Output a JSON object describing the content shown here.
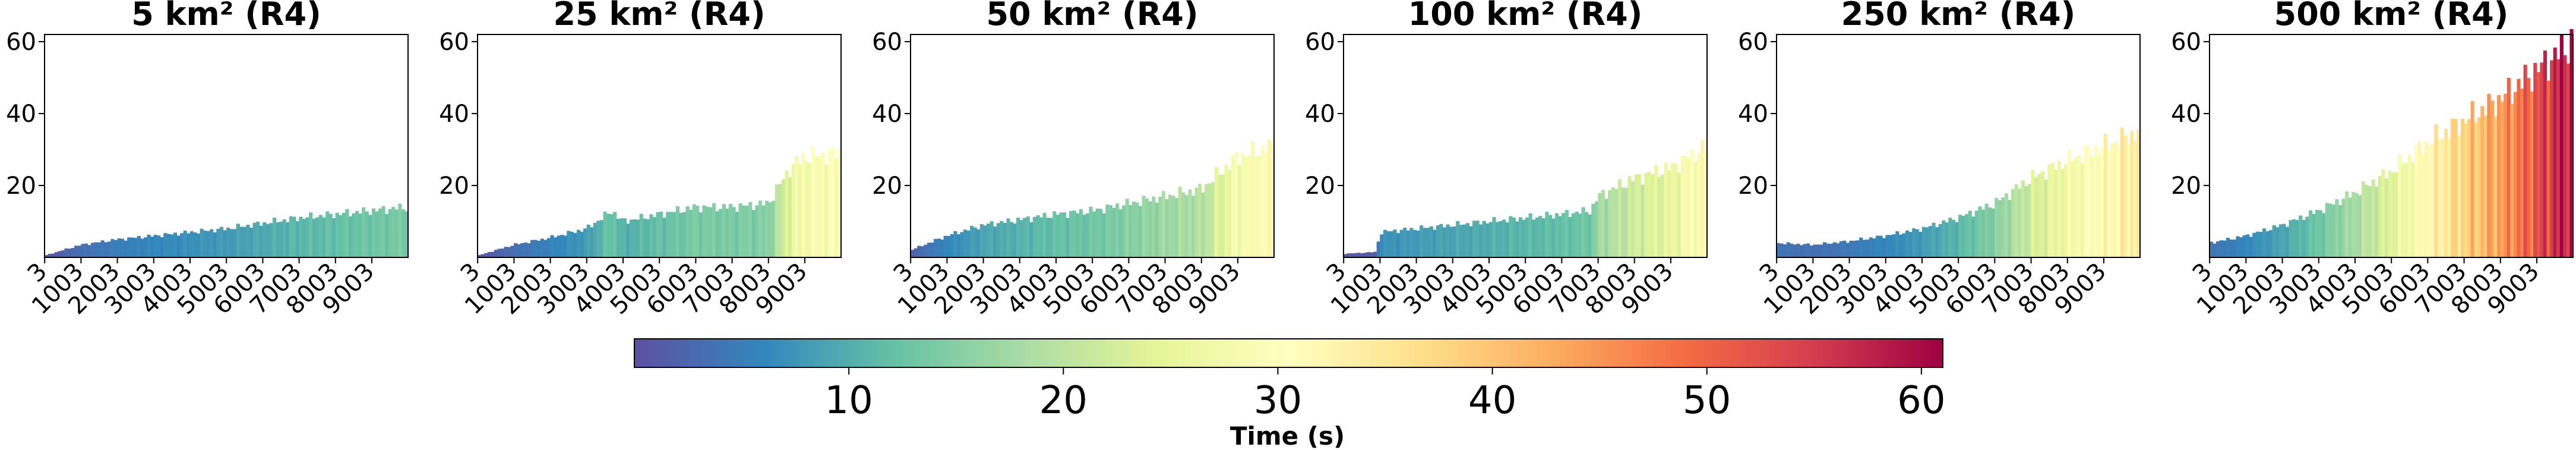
{
  "chart_data": [
    {
      "type": "bar",
      "title": "5 km² (R4)",
      "x_ticks": [
        "3",
        "1003",
        "2003",
        "3003",
        "4003",
        "5003",
        "6003",
        "7003",
        "8003",
        "9003"
      ],
      "xlim": [
        0,
        10000
      ],
      "ylim": [
        0,
        62
      ],
      "y_ticks": [
        20,
        40,
        60
      ],
      "series": [
        {
          "x": [
            0,
            1000,
            2000,
            3000,
            4000,
            5000,
            6000,
            7000,
            8000,
            9000,
            10000
          ],
          "values": [
            0.5,
            3.5,
            5,
            6,
            7,
            8,
            9.5,
            11,
            12,
            13,
            14
          ]
        }
      ]
    },
    {
      "type": "bar",
      "title": "25 km² (R4)",
      "x_ticks": [
        "3",
        "1003",
        "2003",
        "3003",
        "4003",
        "5003",
        "6003",
        "7003",
        "8003",
        "9003"
      ],
      "xlim": [
        0,
        10000
      ],
      "ylim": [
        0,
        62
      ],
      "y_ticks": [
        20,
        40,
        60
      ],
      "series": [
        {
          "x": [
            0,
            1000,
            2000,
            3000,
            3700,
            4000,
            5000,
            6000,
            7000,
            8000,
            8600,
            9000,
            10000
          ],
          "values": [
            0.5,
            3.5,
            5.5,
            8,
            13,
            10,
            12,
            14,
            14,
            15,
            25,
            28,
            29
          ]
        }
      ]
    },
    {
      "type": "bar",
      "title": "50 km² (R4)",
      "x_ticks": [
        "3",
        "1003",
        "2003",
        "3003",
        "4003",
        "5003",
        "6003",
        "7003",
        "8003",
        "9003"
      ],
      "xlim": [
        0,
        10000
      ],
      "ylim": [
        0,
        62
      ],
      "y_ticks": [
        20,
        40,
        60
      ],
      "series": [
        {
          "x": [
            0,
            1000,
            2000,
            3000,
            4000,
            5000,
            6000,
            7000,
            8000,
            9000,
            10000
          ],
          "values": [
            2,
            6,
            9,
            10.5,
            12,
            13,
            15,
            17,
            19,
            28,
            31
          ]
        }
      ]
    },
    {
      "type": "bar",
      "title": "100 km² (R4)",
      "x_ticks": [
        "3",
        "1003",
        "2003",
        "3003",
        "4003",
        "5003",
        "6003",
        "7003",
        "8003",
        "9003"
      ],
      "xlim": [
        0,
        10000
      ],
      "ylim": [
        0,
        62
      ],
      "y_ticks": [
        20,
        40,
        60
      ],
      "series": [
        {
          "x": [
            0,
            900,
            1000,
            2000,
            3000,
            4000,
            5000,
            6000,
            6800,
            7000,
            8000,
            9000,
            10000
          ],
          "values": [
            1,
            1.5,
            7,
            8,
            9,
            10,
            11,
            12,
            13,
            17,
            22,
            25,
            31
          ]
        }
      ]
    },
    {
      "type": "bar",
      "title": "250 km² (R4)",
      "x_ticks": [
        "3",
        "1003",
        "2003",
        "3003",
        "4003",
        "5003",
        "6003",
        "7003",
        "8003",
        "9003"
      ],
      "xlim": [
        0,
        10000
      ],
      "ylim": [
        0,
        62
      ],
      "y_ticks": [
        20,
        40,
        60
      ],
      "series": [
        {
          "x": [
            0,
            1000,
            2000,
            3000,
            4000,
            5000,
            6000,
            7000,
            8000,
            9000,
            10000
          ],
          "values": [
            4,
            3.5,
            4.5,
            6,
            8,
            11,
            15,
            22,
            27,
            31,
            35
          ]
        }
      ]
    },
    {
      "type": "bar",
      "title": "500 km² (R4)",
      "x_ticks": [
        "3",
        "1003",
        "2003",
        "3003",
        "4003",
        "5003",
        "6003",
        "7003",
        "8003",
        "9003"
      ],
      "xlim": [
        0,
        10000
      ],
      "ylim": [
        0,
        62
      ],
      "y_ticks": [
        20,
        40,
        60
      ],
      "series": [
        {
          "x": [
            0,
            1000,
            2000,
            3000,
            4000,
            5000,
            6000,
            7000,
            8000,
            9000,
            10000
          ],
          "values": [
            4,
            6,
            9,
            13,
            18,
            24,
            32,
            38,
            44,
            52,
            60
          ]
        }
      ]
    }
  ],
  "colorbar": {
    "label": "Time (s)",
    "min": 0,
    "max": 61,
    "ticks": [
      10,
      20,
      30,
      40,
      50,
      60
    ],
    "colormap": "Spectral_r",
    "colors": [
      "#5e4fa2",
      "#3288bd",
      "#66c2a5",
      "#abdda4",
      "#e6f598",
      "#ffffbf",
      "#fee08b",
      "#fdae61",
      "#f46d43",
      "#d53e4f",
      "#9e0142"
    ]
  }
}
